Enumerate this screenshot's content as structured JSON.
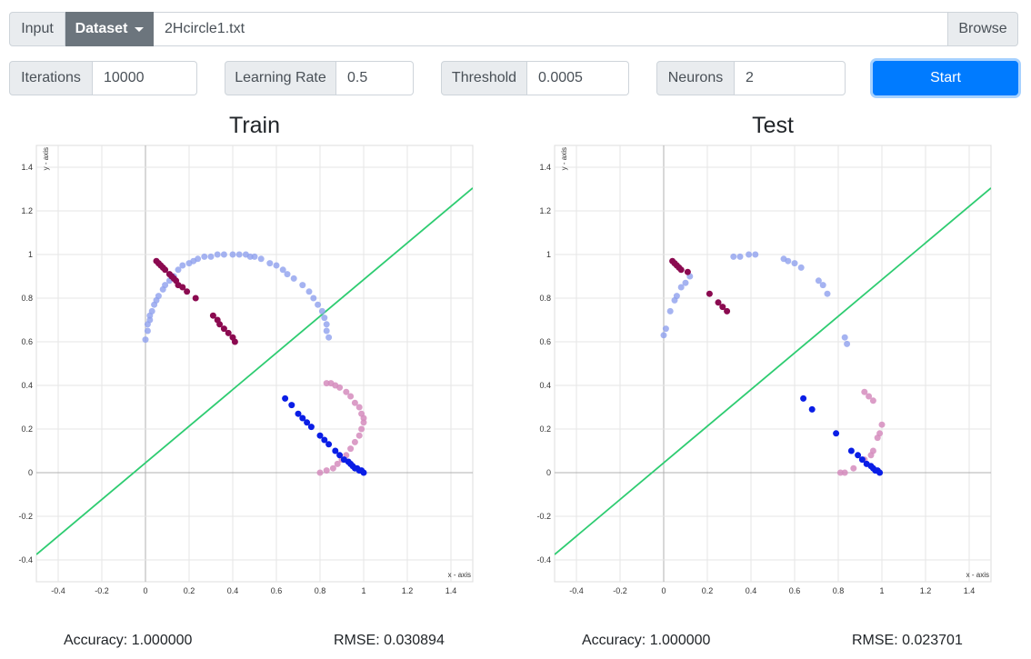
{
  "toolbar": {
    "input_label": "Input",
    "dataset_label": "Dataset",
    "file_value": "2Hcircle1.txt",
    "browse_label": "Browse"
  },
  "params": {
    "iterations_label": "Iterations",
    "iterations_value": "10000",
    "lr_label": "Learning Rate",
    "lr_value": "0.5",
    "threshold_label": "Threshold",
    "threshold_value": "0.0005",
    "neurons_label": "Neurons",
    "neurons_value": "2",
    "start_label": "Start"
  },
  "colors": {
    "line": "#2ecc71",
    "class_a_dark": "#8b0a50",
    "class_a_light": "#d58cbd",
    "class_b_dark": "#0a1ee6",
    "class_b_light": "#8fa0ee"
  },
  "metrics": {
    "train_accuracy": "Accuracy: 1.000000",
    "train_rmse": "RMSE: 0.030894",
    "test_accuracy": "Accuracy: 1.000000",
    "test_rmse": "RMSE: 0.023701"
  },
  "chart_data": [
    {
      "type": "scatter",
      "title": "Train",
      "xlabel": "x - axis",
      "ylabel": "y - axis",
      "xlim": [
        -0.5,
        1.5
      ],
      "ylim": [
        -0.5,
        1.5
      ],
      "xticks": [
        "-0.4",
        "-0.2",
        "0",
        "0.2",
        "0.4",
        "0.6",
        "0.8",
        "1",
        "1.2",
        "1.4"
      ],
      "yticks": [
        "-0.4",
        "-0.2",
        "0",
        "0.2",
        "0.4",
        "0.6",
        "0.8",
        "1",
        "1.2",
        "1.4"
      ],
      "grid": true,
      "boundary": {
        "slope": 0.84,
        "intercept": 0.045
      },
      "series": [
        {
          "style": "b_light",
          "points": [
            [
              0,
              0.61
            ],
            [
              0.01,
              0.65
            ],
            [
              0.01,
              0.68
            ],
            [
              0.02,
              0.7
            ],
            [
              0.02,
              0.72
            ],
            [
              0.03,
              0.74
            ],
            [
              0.04,
              0.77
            ],
            [
              0.05,
              0.79
            ],
            [
              0.06,
              0.81
            ],
            [
              0.08,
              0.84
            ],
            [
              0.09,
              0.86
            ],
            [
              0.11,
              0.88
            ],
            [
              0.13,
              0.9
            ],
            [
              0.15,
              0.93
            ],
            [
              0.17,
              0.95
            ],
            [
              0.2,
              0.96
            ],
            [
              0.22,
              0.97
            ],
            [
              0.24,
              0.98
            ],
            [
              0.27,
              0.99
            ],
            [
              0.3,
              0.99
            ],
            [
              0.33,
              1.0
            ],
            [
              0.36,
              1.0
            ],
            [
              0.4,
              1.0
            ],
            [
              0.43,
              1.0
            ],
            [
              0.46,
              1.0
            ],
            [
              0.48,
              0.99
            ],
            [
              0.5,
              0.99
            ],
            [
              0.53,
              0.98
            ],
            [
              0.57,
              0.96
            ],
            [
              0.6,
              0.95
            ],
            [
              0.63,
              0.93
            ],
            [
              0.65,
              0.91
            ],
            [
              0.68,
              0.89
            ],
            [
              0.72,
              0.86
            ],
            [
              0.75,
              0.83
            ],
            [
              0.77,
              0.8
            ],
            [
              0.79,
              0.77
            ],
            [
              0.81,
              0.74
            ],
            [
              0.82,
              0.71
            ],
            [
              0.83,
              0.68
            ],
            [
              0.83,
              0.65
            ],
            [
              0.84,
              0.62
            ]
          ]
        },
        {
          "style": "a_dark",
          "points": [
            [
              0.05,
              0.97
            ],
            [
              0.06,
              0.96
            ],
            [
              0.07,
              0.95
            ],
            [
              0.08,
              0.94
            ],
            [
              0.09,
              0.93
            ],
            [
              0.11,
              0.91
            ],
            [
              0.12,
              0.9
            ],
            [
              0.13,
              0.89
            ],
            [
              0.14,
              0.88
            ],
            [
              0.15,
              0.86
            ],
            [
              0.17,
              0.85
            ],
            [
              0.19,
              0.83
            ],
            [
              0.23,
              0.8
            ],
            [
              0.31,
              0.72
            ],
            [
              0.33,
              0.7
            ],
            [
              0.34,
              0.68
            ],
            [
              0.36,
              0.66
            ],
            [
              0.38,
              0.64
            ],
            [
              0.4,
              0.62
            ],
            [
              0.41,
              0.6
            ]
          ]
        },
        {
          "style": "a_light",
          "points": [
            [
              0.8,
              0.0
            ],
            [
              0.83,
              0.01
            ],
            [
              0.86,
              0.02
            ],
            [
              0.88,
              0.04
            ],
            [
              0.9,
              0.06
            ],
            [
              0.92,
              0.08
            ],
            [
              0.94,
              0.11
            ],
            [
              0.96,
              0.14
            ],
            [
              0.98,
              0.17
            ],
            [
              0.99,
              0.2
            ],
            [
              1.0,
              0.23
            ],
            [
              1.0,
              0.25
            ],
            [
              0.99,
              0.27
            ],
            [
              0.98,
              0.3
            ],
            [
              0.96,
              0.32
            ],
            [
              0.94,
              0.35
            ],
            [
              0.92,
              0.37
            ],
            [
              0.89,
              0.39
            ],
            [
              0.87,
              0.4
            ],
            [
              0.85,
              0.41
            ],
            [
              0.83,
              0.41
            ]
          ]
        },
        {
          "style": "b_dark",
          "points": [
            [
              0.64,
              0.34
            ],
            [
              0.67,
              0.31
            ],
            [
              0.7,
              0.27
            ],
            [
              0.72,
              0.25
            ],
            [
              0.74,
              0.23
            ],
            [
              0.76,
              0.21
            ],
            [
              0.8,
              0.17
            ],
            [
              0.82,
              0.15
            ],
            [
              0.84,
              0.13
            ],
            [
              0.87,
              0.1
            ],
            [
              0.89,
              0.08
            ],
            [
              0.91,
              0.06
            ],
            [
              0.93,
              0.05
            ],
            [
              0.94,
              0.04
            ],
            [
              0.95,
              0.03
            ],
            [
              0.96,
              0.02
            ],
            [
              0.97,
              0.02
            ],
            [
              0.98,
              0.01
            ],
            [
              0.99,
              0.01
            ],
            [
              1.0,
              0.0
            ]
          ]
        }
      ]
    },
    {
      "type": "scatter",
      "title": "Test",
      "xlabel": "x - axis",
      "ylabel": "y - axis",
      "xlim": [
        -0.5,
        1.5
      ],
      "ylim": [
        -0.5,
        1.5
      ],
      "xticks": [
        "-0.4",
        "-0.2",
        "0",
        "0.2",
        "0.4",
        "0.6",
        "0.8",
        "1",
        "1.2",
        "1.4"
      ],
      "yticks": [
        "-0.4",
        "-0.2",
        "0",
        "0.2",
        "0.4",
        "0.6",
        "0.8",
        "1",
        "1.2",
        "1.4"
      ],
      "grid": true,
      "boundary": {
        "slope": 0.84,
        "intercept": 0.045
      },
      "series": [
        {
          "style": "b_light",
          "points": [
            [
              0,
              0.63
            ],
            [
              0.01,
              0.66
            ],
            [
              0.03,
              0.74
            ],
            [
              0.05,
              0.79
            ],
            [
              0.06,
              0.81
            ],
            [
              0.08,
              0.85
            ],
            [
              0.1,
              0.87
            ],
            [
              0.12,
              0.9
            ],
            [
              0.32,
              0.99
            ],
            [
              0.35,
              0.99
            ],
            [
              0.39,
              1.0
            ],
            [
              0.42,
              1.0
            ],
            [
              0.55,
              0.98
            ],
            [
              0.57,
              0.97
            ],
            [
              0.6,
              0.96
            ],
            [
              0.63,
              0.94
            ],
            [
              0.71,
              0.88
            ],
            [
              0.73,
              0.86
            ],
            [
              0.75,
              0.82
            ],
            [
              0.83,
              0.62
            ],
            [
              0.84,
              0.59
            ]
          ]
        },
        {
          "style": "a_dark",
          "points": [
            [
              0.04,
              0.97
            ],
            [
              0.05,
              0.96
            ],
            [
              0.06,
              0.95
            ],
            [
              0.07,
              0.94
            ],
            [
              0.08,
              0.93
            ],
            [
              0.11,
              0.92
            ],
            [
              0.21,
              0.82
            ],
            [
              0.25,
              0.78
            ],
            [
              0.27,
              0.76
            ],
            [
              0.29,
              0.74
            ]
          ]
        },
        {
          "style": "a_light",
          "points": [
            [
              0.81,
              0.0
            ],
            [
              0.83,
              0.0
            ],
            [
              0.87,
              0.02
            ],
            [
              0.92,
              0.06
            ],
            [
              0.95,
              0.08
            ],
            [
              0.96,
              0.1
            ],
            [
              0.98,
              0.16
            ],
            [
              0.99,
              0.18
            ],
            [
              1.0,
              0.22
            ],
            [
              0.96,
              0.33
            ],
            [
              0.94,
              0.35
            ],
            [
              0.92,
              0.37
            ]
          ]
        },
        {
          "style": "b_dark",
          "points": [
            [
              0.64,
              0.34
            ],
            [
              0.68,
              0.29
            ],
            [
              0.79,
              0.18
            ],
            [
              0.86,
              0.1
            ],
            [
              0.89,
              0.08
            ],
            [
              0.91,
              0.06
            ],
            [
              0.93,
              0.04
            ],
            [
              0.95,
              0.03
            ],
            [
              0.96,
              0.02
            ],
            [
              0.97,
              0.01
            ],
            [
              0.98,
              0.01
            ],
            [
              0.99,
              0.0
            ]
          ]
        }
      ]
    }
  ]
}
